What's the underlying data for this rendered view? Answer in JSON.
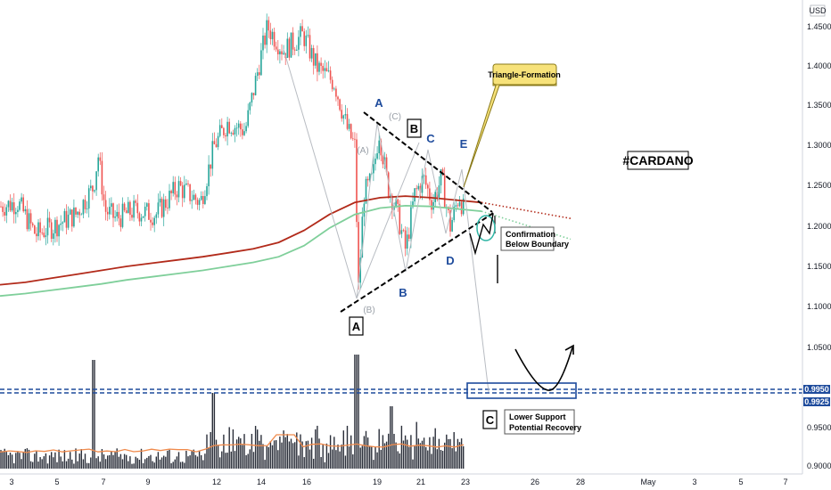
{
  "chart_data": {
    "type": "candlestick",
    "title": "#CARDANO",
    "currency": "USD",
    "y_axis": {
      "ticks": [
        "1.4500",
        "1.4000",
        "1.3500",
        "1.3000",
        "1.2500",
        "1.2000",
        "1.1500",
        "1.1000",
        "1.0500",
        "0.9500",
        "0.9000"
      ],
      "range": [
        0.893,
        1.463
      ]
    },
    "x_axis": {
      "ticks": [
        "3",
        "5",
        "7",
        "9",
        "12",
        "14",
        "16",
        "19",
        "21",
        "23",
        "26",
        "28",
        "May",
        "3",
        "5",
        "7"
      ]
    },
    "price_tags": [
      "0.9950",
      "0.9925"
    ],
    "annotations": {
      "callout": "Triangle-Formation",
      "confirmation_line1": "Confirmation",
      "confirmation_line2": "Below Boundary",
      "support_line1": "Lower Support",
      "support_line2": "Potential Recovery",
      "wave_A_top": "A",
      "wave_B_box": "B",
      "wave_C": "C",
      "wave_B": "B",
      "wave_D": "D",
      "wave_E": "E",
      "wave_A_box": "A",
      "wave_C_box": "C",
      "sub_A": "(A)",
      "sub_B": "(B)",
      "sub_C": "(C)"
    },
    "moving_averages": [
      {
        "color": "#b22a1a",
        "values": [
          1.127,
          1.13,
          1.135,
          1.14,
          1.145,
          1.15,
          1.154,
          1.158,
          1.162,
          1.167,
          1.172,
          1.18,
          1.195,
          1.215,
          1.23,
          1.236,
          1.238,
          1.236,
          1.233,
          1.23
        ]
      },
      {
        "color": "#7fcf9a",
        "values": [
          1.113,
          1.116,
          1.12,
          1.124,
          1.128,
          1.133,
          1.137,
          1.141,
          1.145,
          1.15,
          1.155,
          1.162,
          1.176,
          1.198,
          1.215,
          1.223,
          1.226,
          1.225,
          1.222,
          1.219
        ]
      }
    ],
    "colors": {
      "up": "#26a69a",
      "down": "#ef5350",
      "support": "#1e4b9c",
      "callout": "#f7e27a"
    }
  }
}
